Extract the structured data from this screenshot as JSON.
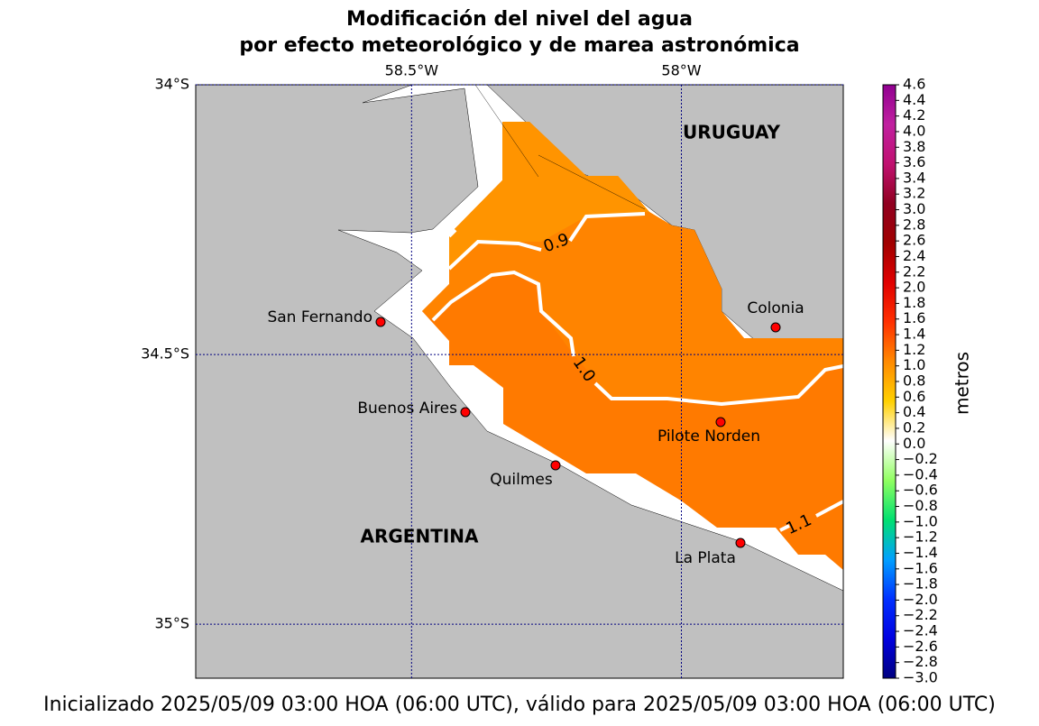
{
  "title_lines": [
    "Modificación del nivel del agua",
    "por efecto meteorológico y de marea astronómica"
  ],
  "footer": "Inicializado 2025/05/09 03:00 HOA (06:00 UTC), válido para 2025/05/09 03:00 HOA (06:00 UTC)",
  "map": {
    "lonlim": [
      -58.9,
      -57.7
    ],
    "latlim": [
      -35.1,
      -34.0
    ],
    "lon_ticks": [
      {
        "value": -58.5,
        "label": "58.5°W"
      },
      {
        "value": -58,
        "label": "58°W"
      }
    ],
    "lat_ticks": [
      {
        "value": -34,
        "label": "34°S"
      },
      {
        "value": -34.5,
        "label": "34.5°S"
      },
      {
        "value": -35,
        "label": "35°S"
      }
    ],
    "countries": [
      "URUGUAY",
      "ARGENTINA"
    ],
    "cities": [
      "San Fernando",
      "Colonia",
      "Buenos Aires",
      "Pilote Norden",
      "Quilmes",
      "La Plata"
    ],
    "contours": [
      0.9,
      {
        "value": 1.0,
        "label": "1.0"
      },
      1.1
    ]
  },
  "colorbar": {
    "label": "metros",
    "lim": [
      -3.0,
      4.6
    ],
    "colors": [
      "#000080",
      "#0000e0",
      "#0030ff",
      "#00a0ff",
      "#00e070",
      "#90ff60",
      "#ffffff",
      "#ffd000",
      "#ff8a00",
      "#ff3000",
      "#e00000",
      "#a00000",
      "#900020",
      "#c01070",
      "#c020a0",
      "#900090"
    ],
    "ticks": [
      {
        "value": -3.0,
        "label": "−3.0"
      },
      {
        "value": -2.8,
        "label": "−2.8"
      },
      {
        "value": -2.6,
        "label": "−2.6"
      },
      {
        "value": -2.4,
        "label": "−2.4"
      },
      {
        "value": -2.2,
        "label": "−2.2"
      },
      {
        "value": -2.0,
        "label": "−2.0"
      },
      {
        "value": -1.8,
        "label": "−1.8"
      },
      {
        "value": -1.6,
        "label": "−1.6"
      },
      {
        "value": -1.4,
        "label": "−1.4"
      },
      {
        "value": -1.2,
        "label": "−1.2"
      },
      {
        "value": -1.0,
        "label": "−1.0"
      },
      {
        "value": -0.8,
        "label": "−0.8"
      },
      {
        "value": -0.6,
        "label": "−0.6"
      },
      {
        "value": -0.4,
        "label": "−0.4"
      },
      {
        "value": -0.2,
        "label": "−0.2"
      },
      {
        "value": 0,
        "label": "0.0"
      },
      0.2,
      0.4,
      0.6,
      0.8,
      {
        "value": 1.0,
        "label": "1.0"
      },
      1.2,
      1.4,
      1.6,
      1.8,
      {
        "value": 2.0,
        "label": "2.0"
      },
      2.2,
      2.4,
      2.6,
      2.8,
      {
        "value": 3.0,
        "label": "3.0"
      },
      3.2,
      3.4,
      3.6,
      3.8,
      {
        "value": 4.0,
        "label": "4.0"
      },
      4.2,
      4.4,
      4.6
    ]
  }
}
